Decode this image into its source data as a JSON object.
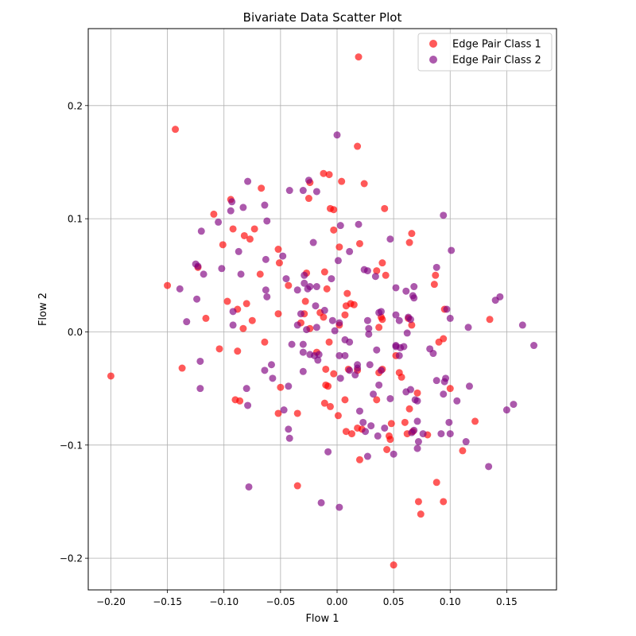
{
  "chart_data": {
    "type": "scatter",
    "title": "Bivariate Data Scatter Plot",
    "xlabel": "Flow 1",
    "ylabel": "Flow 2",
    "xlim": [
      -0.22,
      0.194
    ],
    "ylim": [
      -0.228,
      0.268
    ],
    "xticks": [
      -0.2,
      -0.15,
      -0.1,
      -0.05,
      0.0,
      0.05,
      0.1,
      0.15
    ],
    "xtick_labels": [
      "−0.20",
      "−0.15",
      "−0.10",
      "−0.05",
      "0.00",
      "0.05",
      "0.10",
      "0.15"
    ],
    "yticks": [
      -0.2,
      -0.1,
      0.0,
      0.1,
      0.2
    ],
    "ytick_labels": [
      "−0.2",
      "−0.1",
      "0.0",
      "0.1",
      "0.2"
    ],
    "grid": true,
    "legend_position": "top-right",
    "series": [
      {
        "name": "Edge Pair Class 1",
        "color": "#ff0000",
        "alpha": 0.65,
        "points": [
          [
            0.019,
            0.243
          ],
          [
            -0.143,
            0.179
          ],
          [
            0.018,
            0.164
          ],
          [
            -0.007,
            0.139
          ],
          [
            -0.012,
            0.14
          ],
          [
            -0.024,
            0.132
          ],
          [
            0.004,
            0.133
          ],
          [
            0.024,
            0.131
          ],
          [
            -0.067,
            0.127
          ],
          [
            -0.025,
            0.118
          ],
          [
            -0.094,
            0.117
          ],
          [
            -0.109,
            0.104
          ],
          [
            -0.006,
            0.109
          ],
          [
            -0.003,
            0.108
          ],
          [
            0.042,
            0.109
          ],
          [
            -0.003,
            0.09
          ],
          [
            -0.092,
            0.091
          ],
          [
            -0.073,
            0.091
          ],
          [
            -0.082,
            0.085
          ],
          [
            -0.077,
            0.082
          ],
          [
            -0.101,
            0.077
          ],
          [
            0.02,
            0.078
          ],
          [
            0.002,
            0.075
          ],
          [
            0.064,
            0.079
          ],
          [
            0.066,
            0.087
          ],
          [
            -0.052,
            0.073
          ],
          [
            -0.051,
            0.061
          ],
          [
            0.04,
            0.061
          ],
          [
            -0.123,
            0.057
          ],
          [
            -0.027,
            0.052
          ],
          [
            -0.068,
            0.051
          ],
          [
            0.035,
            0.054
          ],
          [
            -0.011,
            0.053
          ],
          [
            0.043,
            0.05
          ],
          [
            0.087,
            0.05
          ],
          [
            0.086,
            0.042
          ],
          [
            -0.15,
            0.041
          ],
          [
            -0.043,
            0.041
          ],
          [
            -0.009,
            0.038
          ],
          [
            0.009,
            0.034
          ],
          [
            -0.028,
            0.027
          ],
          [
            -0.015,
            0.017
          ],
          [
            0.008,
            0.023
          ],
          [
            0.012,
            0.025
          ],
          [
            -0.097,
            0.027
          ],
          [
            -0.08,
            0.025
          ],
          [
            -0.088,
            0.02
          ],
          [
            -0.116,
            0.012
          ],
          [
            -0.075,
            0.01
          ],
          [
            -0.029,
            0.016
          ],
          [
            -0.012,
            0.013
          ],
          [
            0.015,
            0.024
          ],
          [
            0.007,
            0.015
          ],
          [
            0.039,
            0.013
          ],
          [
            0.04,
            0.011
          ],
          [
            0.063,
            0.012
          ],
          [
            0.066,
            0.006
          ],
          [
            0.095,
            0.02
          ],
          [
            0.135,
            0.011
          ],
          [
            -0.083,
            0.003
          ],
          [
            -0.052,
            0.016
          ],
          [
            -0.032,
            0.008
          ],
          [
            -0.024,
            0.003
          ],
          [
            0.002,
            0.006
          ],
          [
            0.037,
            0.004
          ],
          [
            -0.104,
            -0.015
          ],
          [
            -0.088,
            -0.017
          ],
          [
            -0.064,
            -0.009
          ],
          [
            -0.018,
            -0.018
          ],
          [
            -0.007,
            -0.009
          ],
          [
            -0.003,
            -0.037
          ],
          [
            -0.01,
            -0.033
          ],
          [
            -0.137,
            -0.032
          ],
          [
            0.01,
            -0.033
          ],
          [
            0.018,
            -0.034
          ],
          [
            0.037,
            -0.036
          ],
          [
            0.04,
            -0.033
          ],
          [
            0.055,
            -0.036
          ],
          [
            0.052,
            -0.021
          ],
          [
            -0.008,
            -0.048
          ],
          [
            -0.01,
            -0.047
          ],
          [
            -0.05,
            -0.049
          ],
          [
            0.057,
            -0.04
          ],
          [
            0.071,
            -0.054
          ],
          [
            0.035,
            -0.06
          ],
          [
            -0.09,
            -0.06
          ],
          [
            -0.086,
            -0.061
          ],
          [
            -0.2,
            -0.039
          ],
          [
            -0.011,
            -0.063
          ],
          [
            -0.006,
            -0.066
          ],
          [
            0.007,
            -0.06
          ],
          [
            0.064,
            -0.068
          ],
          [
            0.1,
            -0.05
          ],
          [
            -0.052,
            -0.072
          ],
          [
            -0.035,
            -0.072
          ],
          [
            0.001,
            -0.074
          ],
          [
            0.018,
            -0.085
          ],
          [
            0.022,
            -0.086
          ],
          [
            0.008,
            -0.088
          ],
          [
            0.013,
            -0.09
          ],
          [
            0.048,
            -0.081
          ],
          [
            0.06,
            -0.08
          ],
          [
            0.062,
            -0.09
          ],
          [
            0.067,
            -0.088
          ],
          [
            0.08,
            -0.091
          ],
          [
            0.094,
            -0.006
          ],
          [
            0.09,
            -0.009
          ],
          [
            0.122,
            -0.079
          ],
          [
            0.046,
            -0.092
          ],
          [
            0.047,
            -0.095
          ],
          [
            0.044,
            -0.104
          ],
          [
            0.02,
            -0.113
          ],
          [
            0.111,
            -0.105
          ],
          [
            0.088,
            -0.133
          ],
          [
            -0.035,
            -0.136
          ],
          [
            0.072,
            -0.15
          ],
          [
            0.094,
            -0.15
          ],
          [
            0.074,
            -0.161
          ],
          [
            0.05,
            -0.206
          ]
        ]
      },
      {
        "name": "Edge Pair Class 2",
        "color": "#800080",
        "alpha": 0.65,
        "points": [
          [
            0.0,
            0.174
          ],
          [
            -0.079,
            0.133
          ],
          [
            -0.025,
            0.134
          ],
          [
            -0.042,
            0.125
          ],
          [
            -0.03,
            0.125
          ],
          [
            -0.018,
            0.124
          ],
          [
            -0.093,
            0.115
          ],
          [
            -0.064,
            0.112
          ],
          [
            -0.083,
            0.11
          ],
          [
            -0.094,
            0.107
          ],
          [
            -0.105,
            0.097
          ],
          [
            -0.062,
            0.098
          ],
          [
            0.003,
            0.094
          ],
          [
            0.019,
            0.095
          ],
          [
            0.094,
            0.103
          ],
          [
            -0.12,
            0.089
          ],
          [
            -0.021,
            0.079
          ],
          [
            0.047,
            0.082
          ],
          [
            0.101,
            0.072
          ],
          [
            -0.087,
            0.071
          ],
          [
            0.011,
            0.071
          ],
          [
            -0.048,
            0.067
          ],
          [
            -0.063,
            0.064
          ],
          [
            -0.125,
            0.06
          ],
          [
            -0.123,
            0.058
          ],
          [
            -0.102,
            0.056
          ],
          [
            0.001,
            0.063
          ],
          [
            0.024,
            0.055
          ],
          [
            0.027,
            0.054
          ],
          [
            0.088,
            0.057
          ],
          [
            -0.118,
            0.051
          ],
          [
            -0.085,
            0.051
          ],
          [
            -0.029,
            0.05
          ],
          [
            -0.045,
            0.047
          ],
          [
            -0.005,
            0.047
          ],
          [
            0.034,
            0.049
          ],
          [
            -0.029,
            0.043
          ],
          [
            -0.063,
            0.037
          ],
          [
            -0.035,
            0.037
          ],
          [
            -0.018,
            0.04
          ],
          [
            0.061,
            0.036
          ],
          [
            0.052,
            0.039
          ],
          [
            0.068,
            0.04
          ],
          [
            -0.139,
            0.038
          ],
          [
            -0.026,
            0.038
          ],
          [
            -0.024,
            0.04
          ],
          [
            0.067,
            0.032
          ],
          [
            0.068,
            0.03
          ],
          [
            0.144,
            0.031
          ],
          [
            0.14,
            0.028
          ],
          [
            -0.062,
            0.031
          ],
          [
            -0.124,
            0.029
          ],
          [
            -0.092,
            0.018
          ],
          [
            -0.032,
            0.016
          ],
          [
            -0.019,
            0.023
          ],
          [
            -0.011,
            0.019
          ],
          [
            0.037,
            0.017
          ],
          [
            0.039,
            0.018
          ],
          [
            0.052,
            0.015
          ],
          [
            0.063,
            0.013
          ],
          [
            0.097,
            0.02
          ],
          [
            0.1,
            0.012
          ],
          [
            -0.133,
            0.009
          ],
          [
            -0.092,
            0.006
          ],
          [
            -0.035,
            0.006
          ],
          [
            -0.027,
            0.002
          ],
          [
            -0.018,
            0.004
          ],
          [
            -0.004,
            0.01
          ],
          [
            0.002,
            0.008
          ],
          [
            0.027,
            0.01
          ],
          [
            0.055,
            0.01
          ],
          [
            0.065,
            0.011
          ],
          [
            0.116,
            0.004
          ],
          [
            0.164,
            0.006
          ],
          [
            -0.002,
            0.001
          ],
          [
            0.028,
            0.003
          ],
          [
            0.052,
            -0.013
          ],
          [
            0.056,
            -0.014
          ],
          [
            0.059,
            -0.013
          ],
          [
            0.028,
            -0.002
          ],
          [
            0.007,
            -0.007
          ],
          [
            0.011,
            -0.009
          ],
          [
            0.035,
            -0.016
          ],
          [
            0.062,
            -0.001
          ],
          [
            -0.04,
            -0.011
          ],
          [
            -0.03,
            -0.011
          ],
          [
            -0.03,
            -0.018
          ],
          [
            -0.02,
            -0.021
          ],
          [
            -0.017,
            -0.025
          ],
          [
            -0.024,
            -0.02
          ],
          [
            -0.016,
            -0.02
          ],
          [
            0.002,
            -0.021
          ],
          [
            0.007,
            -0.021
          ],
          [
            0.018,
            -0.029
          ],
          [
            0.029,
            -0.029
          ],
          [
            0.052,
            -0.012
          ],
          [
            0.055,
            -0.021
          ],
          [
            0.082,
            -0.015
          ],
          [
            0.085,
            -0.019
          ],
          [
            0.174,
            -0.012
          ],
          [
            -0.058,
            -0.029
          ],
          [
            -0.057,
            -0.041
          ],
          [
            -0.064,
            -0.034
          ],
          [
            -0.03,
            -0.035
          ],
          [
            0.011,
            -0.034
          ],
          [
            0.016,
            -0.038
          ],
          [
            0.018,
            -0.032
          ],
          [
            0.003,
            -0.041
          ],
          [
            0.039,
            -0.034
          ],
          [
            -0.121,
            -0.026
          ],
          [
            -0.043,
            -0.048
          ],
          [
            -0.08,
            -0.05
          ],
          [
            0.037,
            -0.047
          ],
          [
            0.047,
            -0.059
          ],
          [
            0.032,
            -0.055
          ],
          [
            0.061,
            -0.053
          ],
          [
            0.065,
            -0.051
          ],
          [
            0.069,
            -0.06
          ],
          [
            0.071,
            -0.061
          ],
          [
            0.094,
            -0.055
          ],
          [
            0.088,
            -0.043
          ],
          [
            0.095,
            -0.044
          ],
          [
            0.096,
            -0.041
          ],
          [
            0.117,
            -0.048
          ],
          [
            -0.121,
            -0.05
          ],
          [
            -0.047,
            -0.069
          ],
          [
            -0.079,
            -0.065
          ],
          [
            0.02,
            -0.07
          ],
          [
            0.106,
            -0.061
          ],
          [
            0.156,
            -0.064
          ],
          [
            0.15,
            -0.069
          ],
          [
            0.071,
            -0.079
          ],
          [
            0.099,
            -0.08
          ],
          [
            -0.043,
            -0.086
          ],
          [
            -0.042,
            -0.094
          ],
          [
            0.023,
            -0.08
          ],
          [
            0.03,
            -0.083
          ],
          [
            0.042,
            -0.085
          ],
          [
            0.025,
            -0.088
          ],
          [
            0.066,
            -0.089
          ],
          [
            0.076,
            -0.09
          ],
          [
            0.092,
            -0.09
          ],
          [
            0.1,
            -0.09
          ],
          [
            0.036,
            -0.092
          ],
          [
            0.068,
            -0.087
          ],
          [
            0.072,
            -0.097
          ],
          [
            0.071,
            -0.103
          ],
          [
            0.114,
            -0.097
          ],
          [
            -0.008,
            -0.106
          ],
          [
            0.027,
            -0.11
          ],
          [
            0.05,
            -0.108
          ],
          [
            0.134,
            -0.119
          ],
          [
            -0.078,
            -0.137
          ],
          [
            -0.014,
            -0.151
          ],
          [
            0.002,
            -0.155
          ]
        ]
      }
    ]
  }
}
